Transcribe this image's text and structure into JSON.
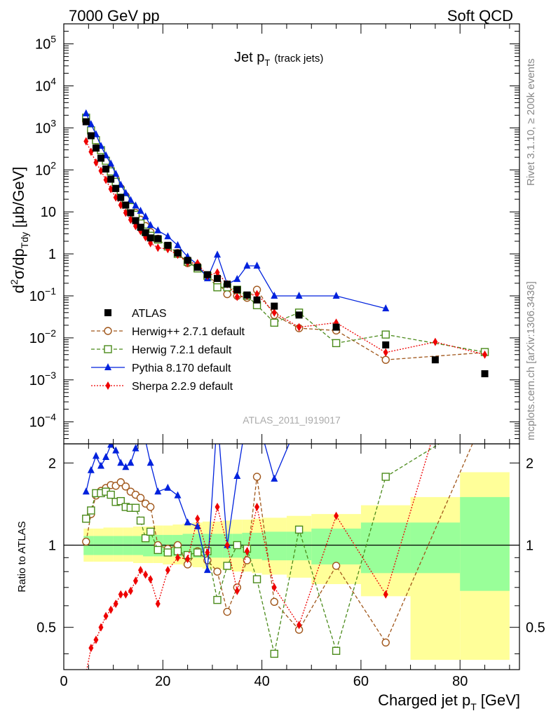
{
  "header": {
    "left": "7000 GeV pp",
    "right": "Soft QCD"
  },
  "side": {
    "rivet": "Rivet 3.1.10, ≥ 200k events",
    "mcplots": "mcplots.cern.ch [arXiv:1306.3436]"
  },
  "chart_data": {
    "type": "scatter",
    "title": "Jet p_T (track jets)",
    "title_main": "Jet p",
    "title_sub": "T",
    "title_note": "(track jets)",
    "watermark": "ATLAS_2011_I919017",
    "ylabel": "d²σ/dp_Tdy [μb/GeV]",
    "ylabel_parts": {
      "d": "d",
      "two": "2",
      "sigma": "σ/dp",
      "T": "T",
      "dy": "dy",
      "unit": "[μb/GeV]"
    },
    "xlabel": "Charged jet p_T [GeV]",
    "xlabel_parts": {
      "main": "Charged jet p",
      "sub": "T",
      "unit": "[GeV]"
    },
    "ratio_ylabel": "Ratio to ATLAS",
    "xlim": [
      0,
      92
    ],
    "ylim": [
      3e-05,
      300000
    ],
    "ratio_ylim": [
      0.35,
      2.35
    ],
    "log_y": true,
    "x_ticks": [
      "0",
      "20",
      "40",
      "60",
      "80"
    ],
    "x_tick_values": [
      0,
      20,
      40,
      60,
      80
    ],
    "y_ticks": [
      {
        "value": 100000,
        "base": "10",
        "exp": "5"
      },
      {
        "value": 10000,
        "base": "10",
        "exp": "4"
      },
      {
        "value": 1000,
        "base": "10",
        "exp": "3"
      },
      {
        "value": 100,
        "base": "10",
        "exp": "2"
      },
      {
        "value": 10,
        "base": "10",
        "exp": ""
      },
      {
        "value": 1,
        "base": "1",
        "exp": ""
      },
      {
        "value": 0.1,
        "base": "10",
        "exp": "−1"
      },
      {
        "value": 0.01,
        "base": "10",
        "exp": "−2"
      },
      {
        "value": 0.001,
        "base": "10",
        "exp": "−3"
      },
      {
        "value": 0.0001,
        "base": "10",
        "exp": "−4"
      }
    ],
    "ratio_ticks": [
      {
        "value": 2,
        "label": "2"
      },
      {
        "value": 1,
        "label": "1"
      },
      {
        "value": 0.5,
        "label": "0.5"
      }
    ],
    "x": [
      4.5,
      5.5,
      6.5,
      7.5,
      8.5,
      9.5,
      10.5,
      11.5,
      12.5,
      13.5,
      14.5,
      15.5,
      16.5,
      17.5,
      19,
      21,
      23,
      25,
      27,
      29,
      31,
      33,
      35,
      37,
      39,
      42.5,
      47.5,
      55,
      65,
      75,
      85
    ],
    "band": [
      {
        "x": [
          4,
          6
        ],
        "inner": [
          0.92,
          1.08
        ],
        "outer": [
          0.87,
          1.15
        ]
      },
      {
        "x": [
          6,
          8
        ],
        "inner": [
          0.92,
          1.08
        ],
        "outer": [
          0.87,
          1.15
        ]
      },
      {
        "x": [
          8,
          10
        ],
        "inner": [
          0.92,
          1.08
        ],
        "outer": [
          0.87,
          1.16
        ]
      },
      {
        "x": [
          10,
          12
        ],
        "inner": [
          0.92,
          1.08
        ],
        "outer": [
          0.87,
          1.16
        ]
      },
      {
        "x": [
          12,
          14
        ],
        "inner": [
          0.92,
          1.08
        ],
        "outer": [
          0.87,
          1.16
        ]
      },
      {
        "x": [
          14,
          16
        ],
        "inner": [
          0.92,
          1.08
        ],
        "outer": [
          0.86,
          1.17
        ]
      },
      {
        "x": [
          16,
          18
        ],
        "inner": [
          0.91,
          1.09
        ],
        "outer": [
          0.86,
          1.17
        ]
      },
      {
        "x": [
          18,
          20
        ],
        "inner": [
          0.91,
          1.09
        ],
        "outer": [
          0.86,
          1.18
        ]
      },
      {
        "x": [
          20,
          22
        ],
        "inner": [
          0.91,
          1.09
        ],
        "outer": [
          0.85,
          1.18
        ]
      },
      {
        "x": [
          22,
          24
        ],
        "inner": [
          0.91,
          1.09
        ],
        "outer": [
          0.85,
          1.19
        ]
      },
      {
        "x": [
          24,
          26
        ],
        "inner": [
          0.91,
          1.1
        ],
        "outer": [
          0.84,
          1.2
        ]
      },
      {
        "x": [
          26,
          28
        ],
        "inner": [
          0.9,
          1.1
        ],
        "outer": [
          0.83,
          1.21
        ]
      },
      {
        "x": [
          28,
          30
        ],
        "inner": [
          0.9,
          1.1
        ],
        "outer": [
          0.82,
          1.22
        ]
      },
      {
        "x": [
          30,
          32
        ],
        "inner": [
          0.9,
          1.1
        ],
        "outer": [
          0.82,
          1.22
        ]
      },
      {
        "x": [
          32,
          34
        ],
        "inner": [
          0.9,
          1.1
        ],
        "outer": [
          0.81,
          1.23
        ]
      },
      {
        "x": [
          34,
          36
        ],
        "inner": [
          0.9,
          1.1
        ],
        "outer": [
          0.8,
          1.24
        ]
      },
      {
        "x": [
          36,
          38
        ],
        "inner": [
          0.89,
          1.11
        ],
        "outer": [
          0.8,
          1.24
        ]
      },
      {
        "x": [
          38,
          40
        ],
        "inner": [
          0.89,
          1.11
        ],
        "outer": [
          0.79,
          1.25
        ]
      },
      {
        "x": [
          40,
          45
        ],
        "inner": [
          0.88,
          1.12
        ],
        "outer": [
          0.78,
          1.26
        ]
      },
      {
        "x": [
          45,
          50
        ],
        "inner": [
          0.88,
          1.12
        ],
        "outer": [
          0.76,
          1.28
        ]
      },
      {
        "x": [
          50,
          60
        ],
        "inner": [
          0.85,
          1.15
        ],
        "outer": [
          0.72,
          1.3
        ]
      },
      {
        "x": [
          60,
          70
        ],
        "inner": [
          0.79,
          1.21
        ],
        "outer": [
          0.65,
          1.4
        ]
      },
      {
        "x": [
          70,
          80
        ],
        "inner": [
          0.79,
          1.21
        ],
        "outer": [
          0.38,
          1.5
        ]
      },
      {
        "x": [
          80,
          90
        ],
        "inner": [
          0.68,
          1.5
        ],
        "outer": [
          0.38,
          1.85
        ]
      }
    ],
    "series": [
      {
        "name": "ATLAS",
        "color": "#000000",
        "marker": "square",
        "line": "none",
        "values": [
          1400,
          650,
          330,
          190,
          105,
          60,
          36,
          22,
          14.5,
          9.5,
          6.2,
          4.3,
          3.2,
          2.4,
          2.3,
          1.6,
          1.05,
          0.7,
          0.48,
          0.32,
          0.26,
          0.19,
          0.14,
          0.105,
          0.08,
          0.057,
          0.035,
          0.018,
          0.0068,
          0.003,
          0.0014
        ]
      },
      {
        "name": "Herwig++ 2.7.1 default",
        "color": "#a0561a",
        "marker": "circle-open",
        "line": "dashed",
        "values": [
          1450,
          840,
          500,
          300,
          170,
          100,
          60,
          37,
          24,
          15,
          9.5,
          6.5,
          4.6,
          3.3,
          2.3,
          1.55,
          1.05,
          0.6,
          0.52,
          0.28,
          0.21,
          0.11,
          0.1,
          0.09,
          0.14,
          0.035,
          0.017,
          0.015,
          0.003,
          null,
          0.0045
        ]
      },
      {
        "name": "Herwig 7.2.1 default",
        "color": "#4a8a1a",
        "marker": "square-open",
        "line": "dashed",
        "values": [
          1750,
          870,
          510,
          295,
          165,
          92,
          52,
          32,
          20,
          13,
          8.5,
          5.3,
          3.4,
          2.7,
          2.2,
          1.5,
          1.0,
          0.65,
          0.45,
          0.3,
          0.16,
          0.16,
          0.14,
          0.1,
          0.06,
          0.023,
          0.04,
          0.0075,
          0.012,
          null,
          0.0046
        ]
      },
      {
        "name": "Pythia 8.170 default",
        "color": "#0022dd",
        "marker": "triangle",
        "line": "solid",
        "values": [
          2200,
          1220,
          700,
          370,
          220,
          140,
          80,
          44,
          28,
          19,
          14,
          10.5,
          7.7,
          4.8,
          3.6,
          2.6,
          1.6,
          0.85,
          0.56,
          0.26,
          0.95,
          0.19,
          0.25,
          0.52,
          0.52,
          0.1,
          0.1,
          0.1,
          0.05,
          null,
          null
        ]
      },
      {
        "name": "Sherpa 2.2.9 default",
        "color": "#ee0000",
        "marker": "diamond",
        "line": "dotted",
        "values": [
          480,
          270,
          150,
          95,
          58,
          35,
          22,
          14.5,
          9.5,
          6.5,
          4.6,
          3.5,
          2.5,
          1.8,
          1.4,
          1.3,
          0.95,
          0.62,
          0.6,
          0.3,
          0.36,
          0.19,
          0.095,
          0.1,
          0.11,
          0.04,
          0.018,
          0.023,
          0.0045,
          0.008,
          0.004
        ]
      }
    ],
    "ratio_series": [
      {
        "name": "Herwig++ 2.7.1 default",
        "values": [
          1.03,
          1.3,
          1.52,
          1.58,
          1.62,
          1.66,
          1.65,
          1.7,
          1.64,
          1.57,
          1.53,
          1.49,
          1.42,
          1.38,
          1.0,
          0.97,
          1.0,
          0.85,
          0.95,
          0.88,
          0.8,
          0.57,
          0.7,
          0.88,
          1.78,
          0.62,
          0.49,
          0.84,
          0.44,
          null,
          3.2
        ]
      },
      {
        "name": "Herwig 7.2.1 default",
        "values": [
          1.25,
          1.34,
          1.55,
          1.55,
          1.57,
          1.53,
          1.44,
          1.45,
          1.38,
          1.37,
          1.37,
          1.23,
          1.06,
          1.12,
          0.96,
          0.94,
          0.95,
          0.92,
          0.94,
          0.95,
          0.63,
          0.84,
          1.0,
          0.97,
          0.75,
          0.4,
          1.14,
          0.41,
          1.78,
          null,
          3.3
        ]
      },
      {
        "name": "Pythia 8.170 default",
        "values": [
          1.57,
          1.88,
          2.12,
          1.95,
          2.1,
          2.33,
          2.22,
          2.0,
          1.93,
          2.0,
          2.26,
          2.44,
          2.41,
          2.0,
          1.57,
          1.62,
          1.52,
          1.21,
          1.17,
          0.81,
          3.65,
          1.0,
          1.79,
          4.95,
          6.5,
          1.75,
          2.86,
          5.56,
          7.35,
          null,
          null
        ]
      },
      {
        "name": "Sherpa 2.2.9 default",
        "values": [
          0.34,
          0.42,
          0.45,
          0.5,
          0.55,
          0.58,
          0.61,
          0.66,
          0.66,
          0.68,
          0.74,
          0.81,
          0.78,
          0.75,
          0.61,
          0.81,
          0.9,
          0.89,
          1.25,
          0.94,
          1.38,
          1.0,
          0.68,
          0.95,
          1.38,
          0.7,
          0.51,
          1.28,
          0.66,
          2.67,
          2.86
        ]
      }
    ]
  }
}
